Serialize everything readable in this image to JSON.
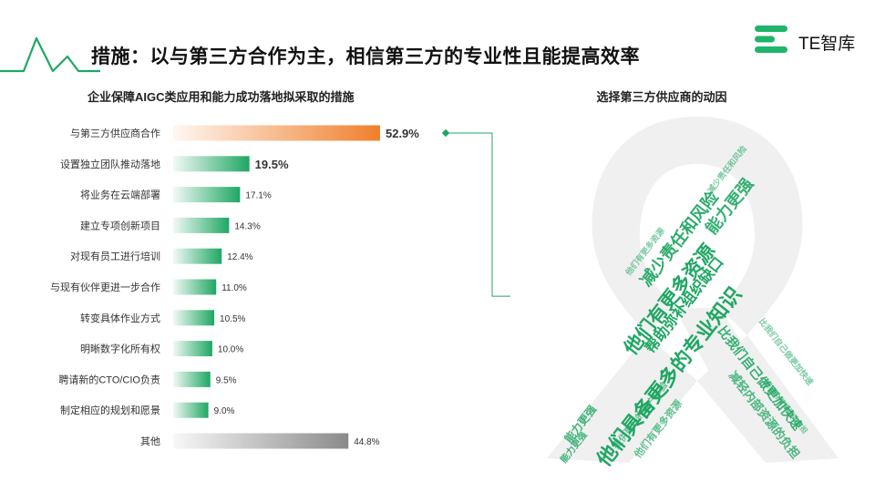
{
  "header": {
    "title": "措施：以与第三方合作为主，相信第三方的专业性且能提高效率"
  },
  "logo": {
    "text": "TE智库",
    "color": "#1fb46a"
  },
  "chart_data": {
    "type": "bar",
    "orientation": "horizontal",
    "title": "企业保障AIGC类应用和能力成功落地拟采取的措施",
    "categories": [
      "与第三方供应商合作",
      "设置独立团队推动落地",
      "将业务在云端部署",
      "建立专项创新项目",
      "对现有员工进行培训",
      "与现有伙伴更进一步合作",
      "转变具体作业方式",
      "明晰数字化所有权",
      "聘请新的CTO/CIO负责",
      "制定相应的规划和愿景",
      "其他"
    ],
    "values": [
      52.9,
      19.5,
      17.1,
      14.3,
      12.4,
      11.0,
      10.5,
      10.0,
      9.5,
      9.0,
      44.8
    ],
    "value_labels": [
      "52.9%",
      "19.5%",
      "17.1%",
      "14.3%",
      "12.4%",
      "11.0%",
      "10.5%",
      "10.0%",
      "9.5%",
      "9.0%",
      "44.8%"
    ],
    "xlim": [
      0,
      55
    ],
    "bar_colors": [
      "#f07f2c",
      "#1fa763",
      "#1fa763",
      "#1fa763",
      "#1fa763",
      "#1fa763",
      "#1fa763",
      "#1fa763",
      "#1fa763",
      "#1fa763",
      "#8a8a8a"
    ],
    "highlight_index": [
      0,
      1
    ]
  },
  "word_cloud": {
    "title": "选择第三方供应商的动因",
    "words": [
      "他们具备更多的专业知识",
      "他们有更多资源",
      "帮助弥补组织缺口",
      "减少责任和风险",
      "能力更强",
      "比我们自己做更加快速",
      "减轻内部资源的负担",
      "提供更好的客户体验",
      "他们有更多资源",
      "能力更强",
      "能力更强",
      "减少责任和风险",
      "比我们自己做更加快速",
      "他们有更多资源",
      "减轻内部资源的负担"
    ],
    "color": "#1fa763"
  }
}
